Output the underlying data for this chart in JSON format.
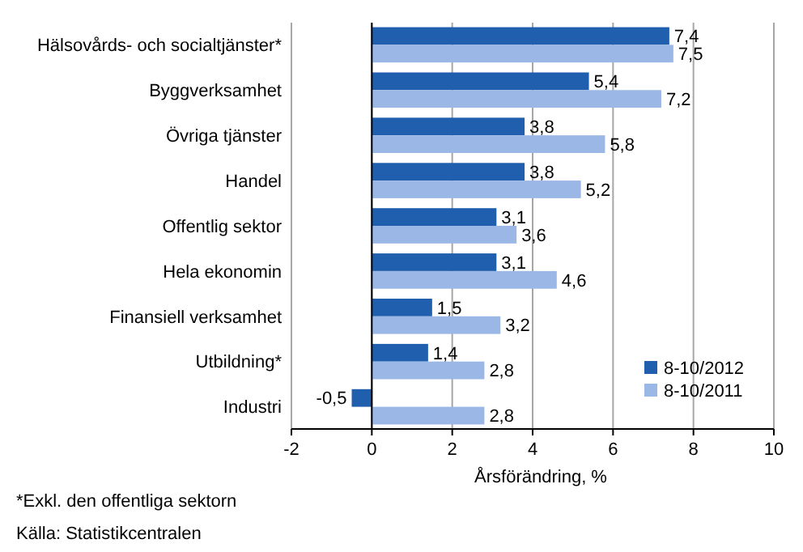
{
  "chart_data": {
    "type": "bar",
    "orientation": "horizontal",
    "categories": [
      "Hälsovårds- och socialtjänster*",
      "Byggverksamhet",
      "Övriga tjänster",
      "Handel",
      "Offentlig sektor",
      "Hela ekonomin",
      "Finansiell verksamhet",
      "Utbildning*",
      "Industri"
    ],
    "series": [
      {
        "name": "8-10/2012",
        "color": "#1f5fad",
        "values": [
          7.4,
          5.4,
          3.8,
          3.8,
          3.1,
          3.1,
          1.5,
          1.4,
          -0.5
        ],
        "value_labels": [
          "7,4",
          "5,4",
          "3,8",
          "3,8",
          "3,1",
          "3,1",
          "1,5",
          "1,4",
          "-0,5"
        ]
      },
      {
        "name": "8-10/2011",
        "color": "#9ab7e6",
        "values": [
          7.5,
          7.2,
          5.8,
          5.2,
          3.6,
          4.6,
          3.2,
          2.8,
          2.8
        ],
        "value_labels": [
          "7,5",
          "7,2",
          "5,8",
          "5,2",
          "3,6",
          "4,6",
          "3,2",
          "2,8",
          "2,8"
        ]
      }
    ],
    "xlim": [
      -2,
      10
    ],
    "xticks": [
      -2,
      0,
      2,
      4,
      6,
      8,
      10
    ],
    "xlabel": "Årsförändring, %",
    "grid": "x",
    "legend": "bottom right",
    "annotations": [
      "*Exkl. den offentliga sektorn",
      "Källa: Statistikcentralen"
    ]
  }
}
